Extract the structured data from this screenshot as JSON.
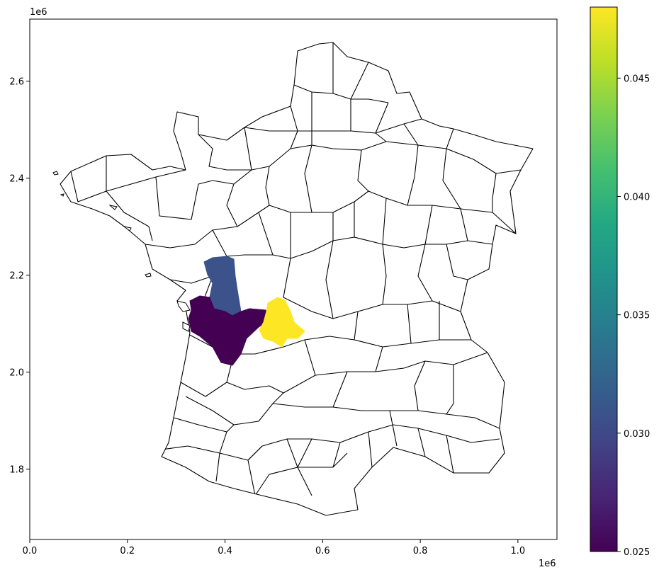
{
  "map": {
    "x_axis": {
      "tick_labels": [
        "0.0",
        "0.2",
        "0.4",
        "0.6",
        "0.8",
        "1.0"
      ],
      "offset_label": "1e6",
      "range": [
        0,
        1.08
      ]
    },
    "y_axis": {
      "tick_labels": [
        "1.8",
        "2.0",
        "2.2",
        "2.4",
        "2.6"
      ],
      "offset_label": "1e6",
      "range": [
        1.655,
        2.728
      ]
    },
    "highlighted_regions": [
      {
        "value": 0.0288,
        "color": "#3b528b"
      },
      {
        "value": 0.025,
        "color": "#440154"
      },
      {
        "value": 0.048,
        "color": "#fde725"
      }
    ]
  },
  "colorbar": {
    "colormap": "viridis",
    "range": [
      0.025,
      0.048
    ],
    "tick_labels": [
      "0.025",
      "0.030",
      "0.035",
      "0.040",
      "0.045"
    ]
  }
}
